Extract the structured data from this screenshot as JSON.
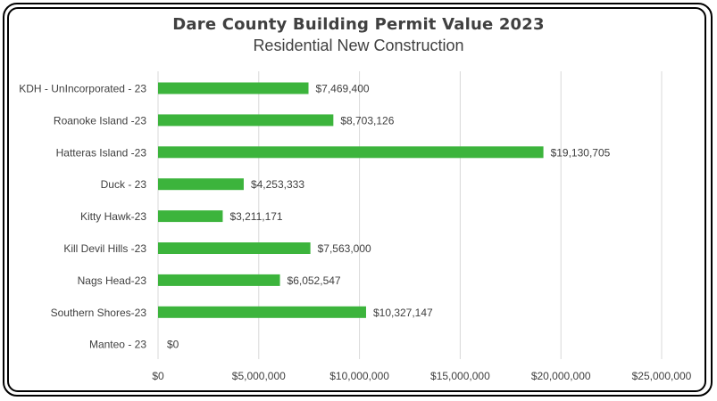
{
  "chart_data": {
    "type": "bar",
    "orientation": "horizontal",
    "title": "Dare County Building Permit Value 2023",
    "subtitle": "Residential New Construction",
    "categories": [
      "KDH - UnIncorporated - 23",
      "Roanoke Island -23",
      "Hatteras Island -23",
      "Duck - 23",
      "Kitty Hawk-23",
      "Kill Devil Hills -23",
      "Nags Head-23",
      "Southern Shores-23",
      "Manteo - 23"
    ],
    "values": [
      7469400,
      8703126,
      19130705,
      4253333,
      3211171,
      7563000,
      6052547,
      10327147,
      0
    ],
    "data_labels": [
      "$7,469,400",
      "$8,703,126",
      "$19,130,705",
      "$4,253,333",
      "$3,211,171",
      "$7,563,000",
      "$6,052,547",
      "$10,327,147",
      "$0"
    ],
    "xlim": [
      0,
      25000000
    ],
    "x_ticks": [
      0,
      5000000,
      10000000,
      15000000,
      20000000,
      25000000
    ],
    "x_tick_labels": [
      "$0",
      "$5,000,000",
      "$10,000,000",
      "$15,000,000",
      "$20,000,000",
      "$25,000,000"
    ],
    "gridlines": "vertical",
    "legend": "none",
    "bar_color": "#3cb43c",
    "gridline_color": "#d9d9d9",
    "text_color": "#404040"
  }
}
